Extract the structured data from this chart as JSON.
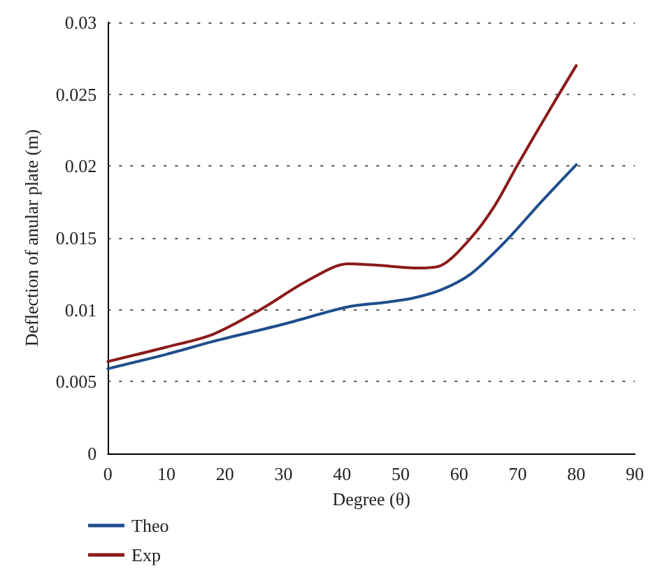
{
  "chart_data": {
    "type": "line",
    "xlabel": "Degree (θ)",
    "ylabel": "Deflection of anular plate (m)",
    "xlim": [
      0,
      90
    ],
    "xticks": [
      0,
      10,
      20,
      30,
      40,
      50,
      60,
      70,
      80,
      90
    ],
    "ylim": [
      0,
      0.03
    ],
    "yticks": [
      0,
      0.005,
      0.01,
      0.015,
      0.02,
      0.025,
      0.03
    ],
    "grid": "y",
    "legend": "bottom left",
    "marker": "none",
    "line_style": "solid",
    "series": [
      {
        "name": "Theo",
        "color": "#1f4e8c",
        "x": [
          0,
          10,
          18,
          30,
          41,
          47,
          52,
          57,
          62,
          68,
          74,
          80
        ],
        "values": [
          0.0059,
          0.0069,
          0.0078,
          0.009,
          0.0102,
          0.0105,
          0.0108,
          0.0114,
          0.0125,
          0.0148,
          0.0175,
          0.0201
        ]
      },
      {
        "name": "Exp",
        "color": "#8b1a1a",
        "x": [
          0,
          10,
          18,
          26,
          34,
          41,
          46,
          53,
          57,
          62,
          66,
          70,
          75,
          80
        ],
        "values": [
          0.0064,
          0.0074,
          0.0083,
          0.01,
          0.012,
          0.0132,
          0.0131,
          0.0129,
          0.0131,
          0.015,
          0.0172,
          0.0201,
          0.0236,
          0.027
        ]
      }
    ]
  }
}
